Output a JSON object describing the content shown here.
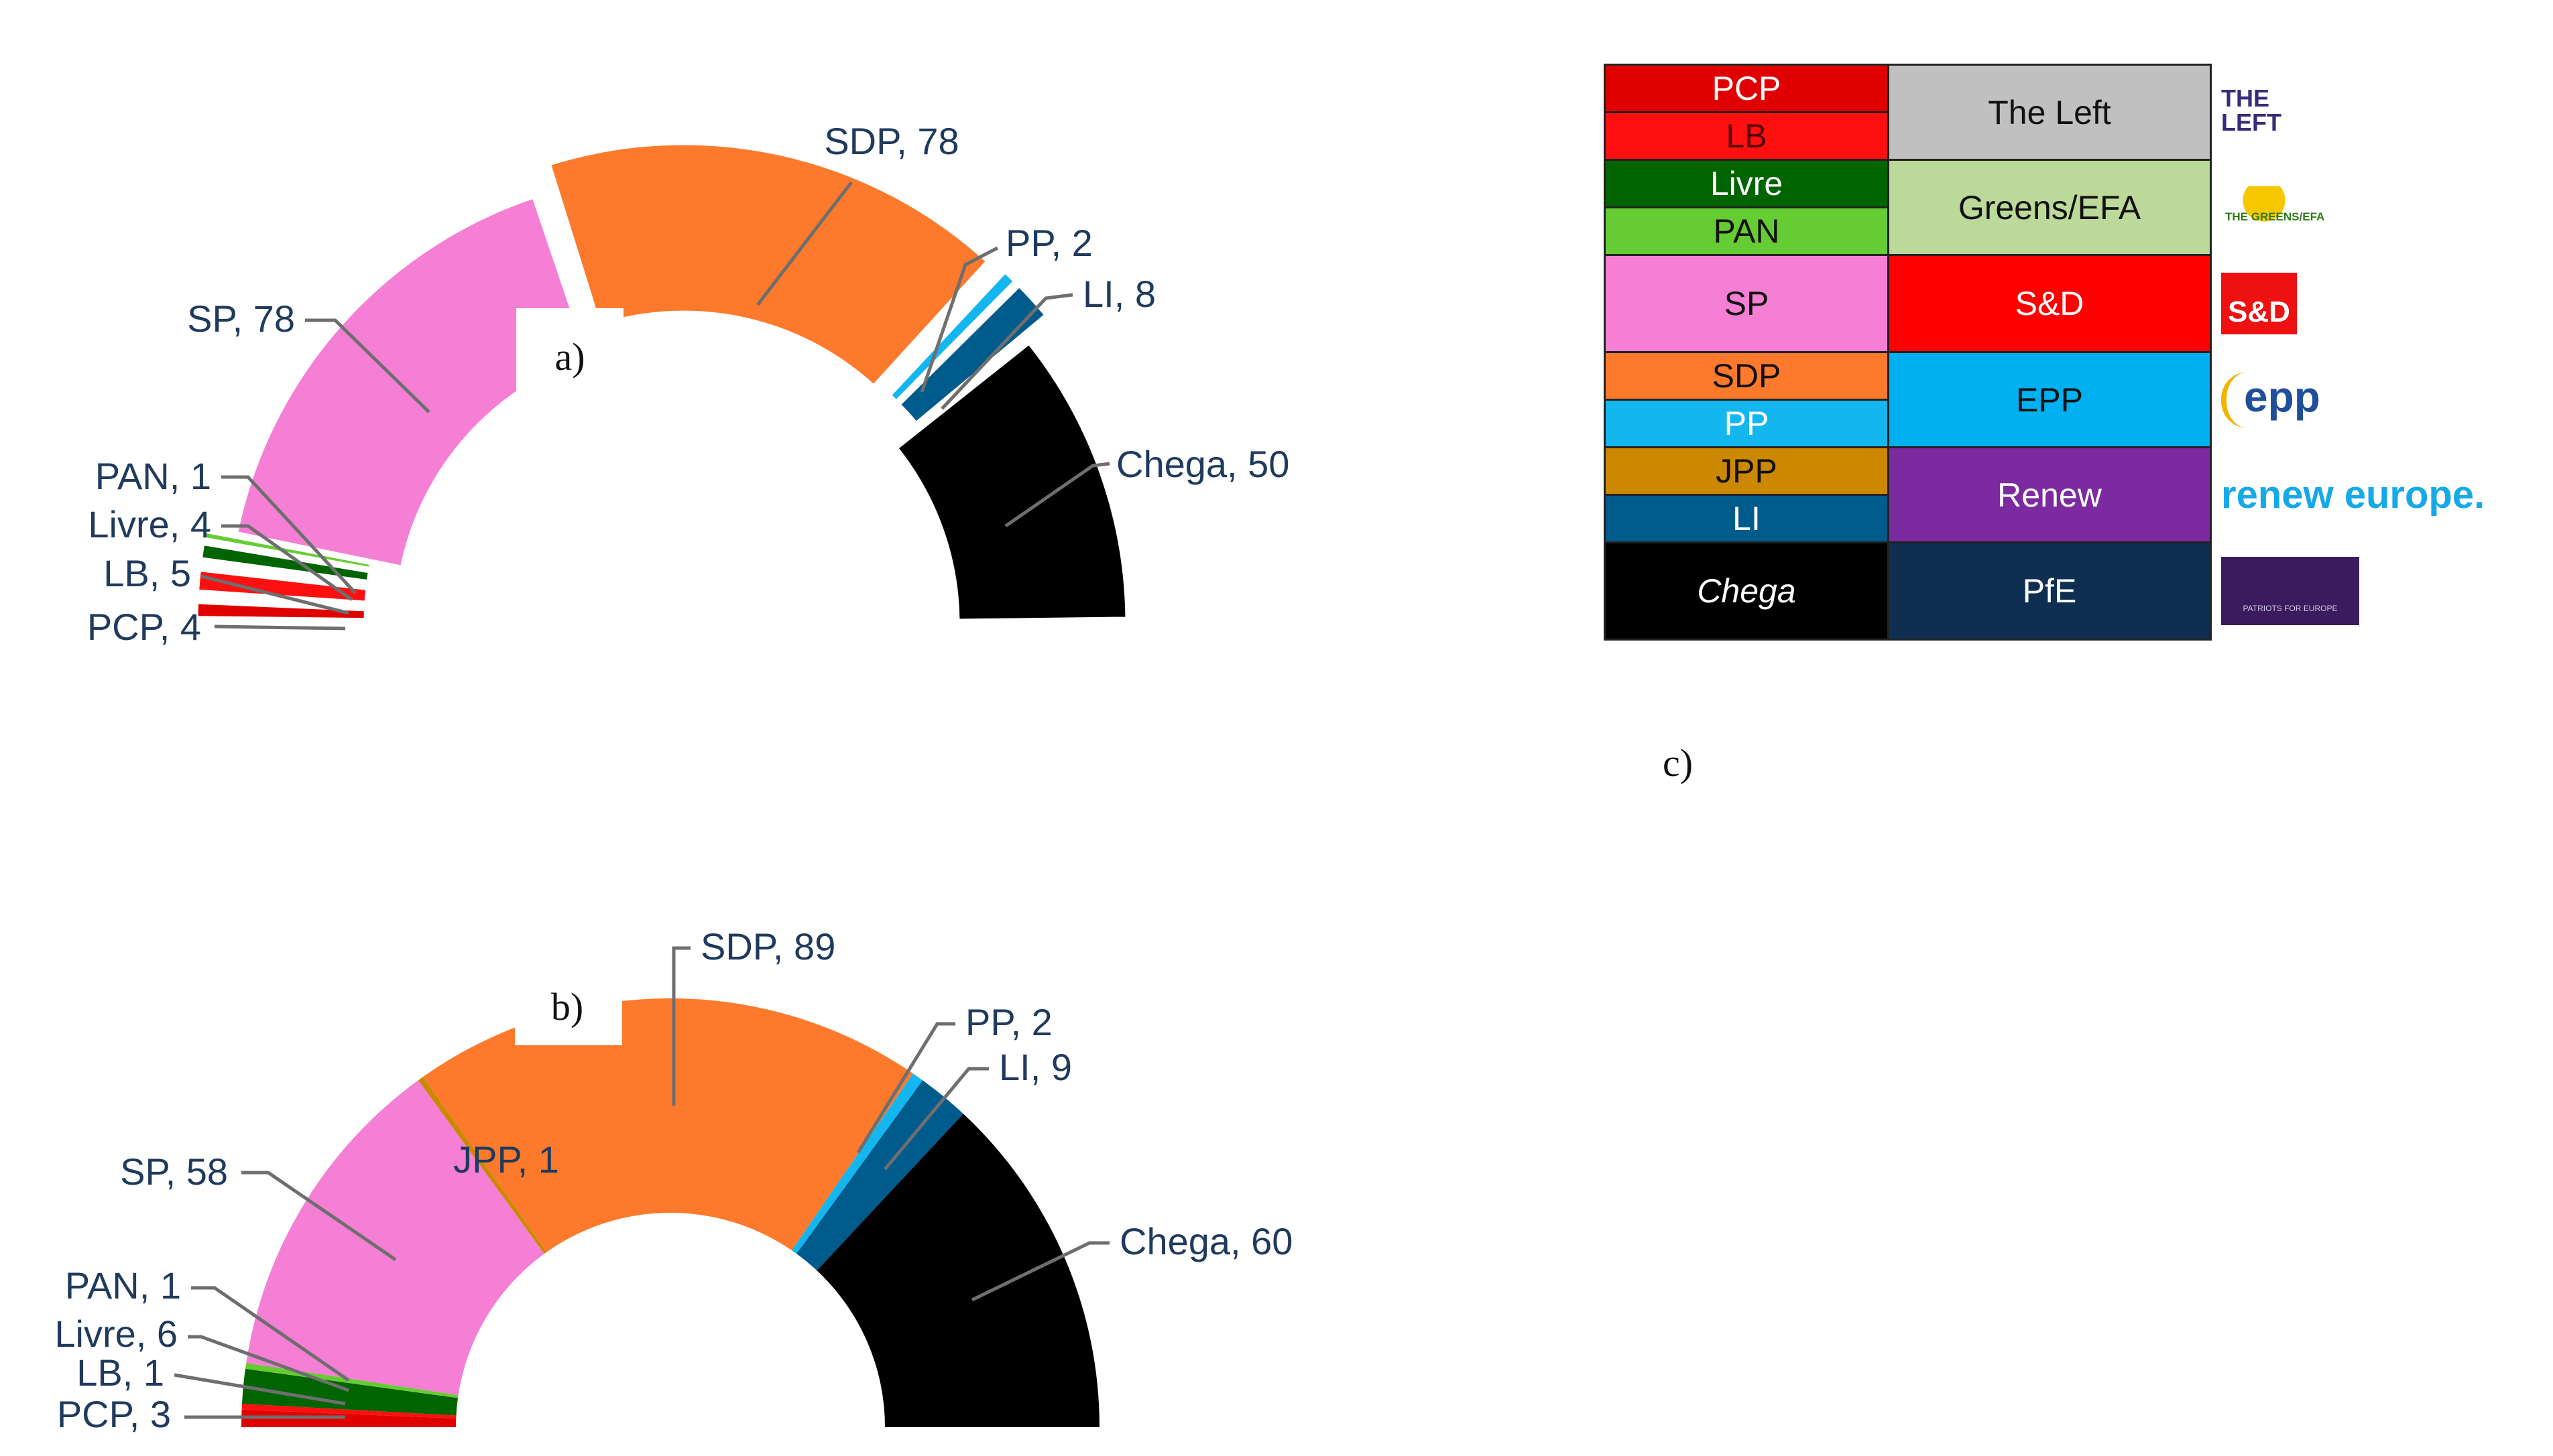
{
  "colors": {
    "PCP": "#e00000",
    "LB": "#ff1010",
    "Livre": "#006400",
    "PAN": "#66cc33",
    "SP": "#f57fd4",
    "SDP": "#fd7a2d",
    "PP": "#14b6ef",
    "JPP": "#cc8800",
    "LI": "#005b8d",
    "Chega": "#000000"
  },
  "chart_data": [
    {
      "type": "pie",
      "panel_label": "a)",
      "layout": "parliament-hemicycle",
      "slices": [
        {
          "party": "PCP",
          "value": 4,
          "label": "PCP, 4"
        },
        {
          "party": "LB",
          "value": 5,
          "label": "LB, 5"
        },
        {
          "party": "Livre",
          "value": 4,
          "label": "Livre, 4"
        },
        {
          "party": "PAN",
          "value": 1,
          "label": "PAN, 1"
        },
        {
          "party": "SP",
          "value": 78,
          "label": "SP, 78"
        },
        {
          "party": "SDP",
          "value": 78,
          "label": "SDP, 78"
        },
        {
          "party": "PP",
          "value": 2,
          "label": "PP, 2"
        },
        {
          "party": "LI",
          "value": 8,
          "label": "LI, 8"
        },
        {
          "party": "Chega",
          "value": 50,
          "label": "Chega, 50"
        }
      ],
      "legend": "none"
    },
    {
      "type": "pie",
      "panel_label": "b)",
      "layout": "parliament-hemicycle",
      "slices": [
        {
          "party": "PCP",
          "value": 3,
          "label": "PCP, 3"
        },
        {
          "party": "LB",
          "value": 1,
          "label": "LB, 1"
        },
        {
          "party": "Livre",
          "value": 6,
          "label": "Livre, 6"
        },
        {
          "party": "PAN",
          "value": 1,
          "label": "PAN, 1"
        },
        {
          "party": "SP",
          "value": 58,
          "label": "SP, 58"
        },
        {
          "party": "JPP",
          "value": 1,
          "label": "JPP, 1"
        },
        {
          "party": "SDP",
          "value": 89,
          "label": "SDP, 89"
        },
        {
          "party": "PP",
          "value": 2,
          "label": "PP, 2"
        },
        {
          "party": "LI",
          "value": 9,
          "label": "LI, 9"
        },
        {
          "party": "Chega",
          "value": 60,
          "label": "Chega, 60"
        }
      ],
      "legend": "none"
    },
    {
      "type": "table",
      "panel_label": "c)",
      "rows": [
        {
          "parties": [
            "PCP",
            "LB"
          ],
          "group": "The Left",
          "group_color": "#c0c0c0",
          "group_text": "#111111",
          "logo": "the-left-logo",
          "logo_text": "THE LEFT"
        },
        {
          "parties": [
            "Livre",
            "PAN"
          ],
          "group": "Greens/EFA",
          "group_color": "#bcd99a",
          "group_text": "#111111",
          "logo": "greens-efa-logo",
          "logo_text": "THE GREENS/EFA"
        },
        {
          "parties": [
            "SP"
          ],
          "group": "S&D",
          "group_color": "#ff0000",
          "group_text": "#ffffff",
          "logo": "sd-logo",
          "logo_text": "S&D"
        },
        {
          "parties": [
            "SDP",
            "PP"
          ],
          "group": "EPP",
          "group_color": "#00b0f0",
          "group_text": "#111111",
          "logo": "epp-logo",
          "logo_text": "epp"
        },
        {
          "parties": [
            "JPP",
            "LI"
          ],
          "group": "Renew",
          "group_color": "#7b2a9f",
          "group_text": "#ffffff",
          "logo": "renew-europe-logo",
          "logo_text": "renew europe."
        },
        {
          "parties": [
            "Chega"
          ],
          "group": "PfE",
          "group_color": "#0e2e52",
          "group_text": "#ffffff",
          "logo": "pfe-logo",
          "logo_text": "PATRIOTS FOR EUROPE"
        }
      ]
    }
  ]
}
